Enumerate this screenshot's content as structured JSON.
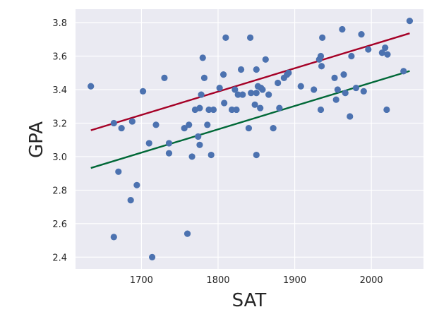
{
  "chart_data": {
    "type": "scatter",
    "title": "",
    "xlabel": "SAT",
    "ylabel": "GPA",
    "xlim": [
      1614,
      2068
    ],
    "ylim": [
      2.33,
      3.88
    ],
    "xticks": [
      1700,
      1800,
      1900,
      2000
    ],
    "yticks": [
      2.4,
      2.6,
      2.8,
      3.0,
      3.2,
      3.4,
      3.6,
      3.8
    ],
    "x_tick_labels": [
      "1700",
      "1800",
      "1900",
      "2000"
    ],
    "y_tick_labels": [
      "2.4",
      "2.6",
      "2.8",
      "3.0",
      "3.2",
      "3.4",
      "3.6",
      "3.8"
    ],
    "grid": true,
    "legend": "none",
    "colors": {
      "background": "#eaeaf2",
      "grid": "#ffffff",
      "points": "#4c72b0",
      "upper_line": "#a50026",
      "lower_line": "#006837"
    },
    "points": {
      "x": [
        1634,
        1664,
        1664,
        1670,
        1674,
        1686,
        1688,
        1694,
        1702,
        1710,
        1714,
        1719,
        1730,
        1736,
        1736,
        1756,
        1760,
        1762,
        1766,
        1770,
        1774,
        1776,
        1776,
        1778,
        1780,
        1782,
        1786,
        1788,
        1791,
        1794,
        1802,
        1807,
        1808,
        1810,
        1818,
        1822,
        1824,
        1826,
        1830,
        1832,
        1840,
        1842,
        1843,
        1848,
        1850,
        1850,
        1850,
        1852,
        1855,
        1856,
        1858,
        1862,
        1866,
        1872,
        1878,
        1880,
        1886,
        1890,
        1892,
        1908,
        1925,
        1932,
        1934,
        1934,
        1935,
        1936,
        1952,
        1954,
        1956,
        1962,
        1964,
        1966,
        1972,
        1974,
        1980,
        1987,
        1990,
        1996,
        2014,
        2018,
        2020,
        2021,
        2042,
        2050
      ],
      "y": [
        3.42,
        2.52,
        3.2,
        2.91,
        3.17,
        2.74,
        3.21,
        2.83,
        3.39,
        3.08,
        2.4,
        3.19,
        3.47,
        3.02,
        3.08,
        3.17,
        2.54,
        3.19,
        3.0,
        3.28,
        3.12,
        3.07,
        3.29,
        3.37,
        3.59,
        3.47,
        3.19,
        3.28,
        3.01,
        3.28,
        3.41,
        3.49,
        3.32,
        3.71,
        3.28,
        3.4,
        3.28,
        3.37,
        3.52,
        3.37,
        3.17,
        3.71,
        3.38,
        3.31,
        3.52,
        3.01,
        3.38,
        3.42,
        3.29,
        3.41,
        3.4,
        3.58,
        3.37,
        3.17,
        3.44,
        3.29,
        3.47,
        3.49,
        3.5,
        3.42,
        3.4,
        3.58,
        3.6,
        3.28,
        3.54,
        3.71,
        3.47,
        3.34,
        3.4,
        3.76,
        3.49,
        3.38,
        3.24,
        3.6,
        3.41,
        3.73,
        3.39,
        3.64,
        3.62,
        3.65,
        3.28,
        3.61,
        3.51,
        3.81
      ]
    },
    "lines": [
      {
        "x": [
          1634,
          2050
        ],
        "y": [
          3.157,
          3.736
        ]
      },
      {
        "x": [
          1634,
          2050
        ],
        "y": [
          2.932,
          3.511
        ]
      }
    ]
  }
}
